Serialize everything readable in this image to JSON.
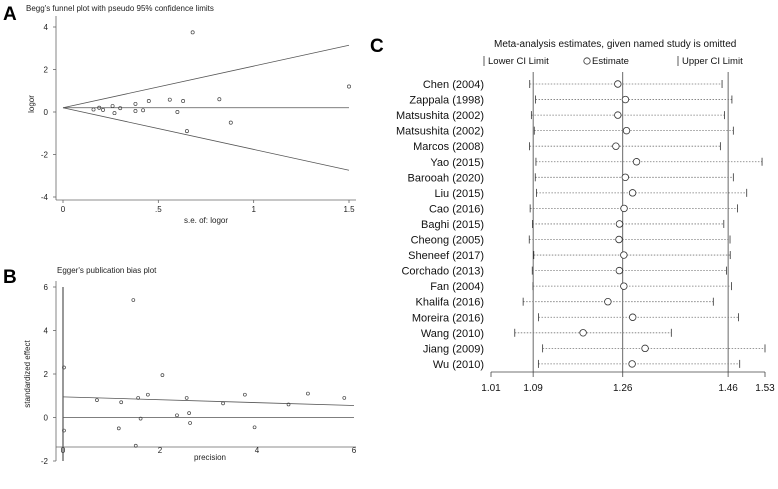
{
  "panels": {
    "a": {
      "label": "A",
      "chart_data": {
        "type": "scatter",
        "title": "Begg's funnel plot with pseudo 95% confidence limits",
        "xlabel": "s.e. of: logor",
        "ylabel": "logor",
        "xlim": [
          0,
          1.5
        ],
        "ylim": [
          -4,
          4
        ],
        "xticks": [
          "0",
          ".5",
          "1",
          "1.5"
        ],
        "xtick_values": [
          0,
          0.5,
          1,
          1.5
        ],
        "yticks": [
          "4",
          "2",
          "0",
          "-2",
          "-4"
        ],
        "ytick_values": [
          4,
          2,
          0,
          -2,
          -4
        ],
        "pooled_estimate": 0.2,
        "funnel_slope": 1.96,
        "points": [
          [
            0.16,
            0.12
          ],
          [
            0.19,
            0.2
          ],
          [
            0.21,
            0.1
          ],
          [
            0.26,
            0.28
          ],
          [
            0.27,
            -0.05
          ],
          [
            0.3,
            0.18
          ],
          [
            0.38,
            0.05
          ],
          [
            0.38,
            0.38
          ],
          [
            0.42,
            0.08
          ],
          [
            0.45,
            0.52
          ],
          [
            0.56,
            0.58
          ],
          [
            0.6,
            0.0
          ],
          [
            0.63,
            0.52
          ],
          [
            0.65,
            -0.9
          ],
          [
            0.68,
            3.75
          ],
          [
            0.82,
            0.6
          ],
          [
            0.88,
            -0.5
          ],
          [
            1.5,
            1.2
          ]
        ]
      }
    },
    "b": {
      "label": "B",
      "chart_data": {
        "type": "scatter",
        "title": "Egger's publication bias plot",
        "xlabel": "precision",
        "ylabel": "standardized effect",
        "xlim": [
          0,
          6
        ],
        "ylim": [
          -2,
          6
        ],
        "xticks": [
          "0",
          "2",
          "4",
          "6"
        ],
        "xtick_values": [
          0,
          2,
          4,
          6
        ],
        "yticks": [
          "6",
          "4",
          "2",
          "0",
          "-2"
        ],
        "ytick_values": [
          6,
          4,
          2,
          0,
          -2
        ],
        "regression_line": [
          [
            0,
            0.95
          ],
          [
            6,
            0.55
          ]
        ],
        "intercept_ci": [
          -2,
          6
        ],
        "points": [
          [
            0.02,
            2.3
          ],
          [
            0.02,
            -0.6
          ],
          [
            0.7,
            0.8
          ],
          [
            1.15,
            -0.5
          ],
          [
            1.2,
            0.7
          ],
          [
            1.45,
            5.4
          ],
          [
            1.5,
            -1.3
          ],
          [
            1.55,
            0.9
          ],
          [
            1.6,
            -0.05
          ],
          [
            1.75,
            1.05
          ],
          [
            2.05,
            1.95
          ],
          [
            2.35,
            0.1
          ],
          [
            2.55,
            0.9
          ],
          [
            2.6,
            0.2
          ],
          [
            2.62,
            -0.25
          ],
          [
            3.3,
            0.65
          ],
          [
            3.75,
            1.05
          ],
          [
            3.95,
            -0.45
          ],
          [
            4.65,
            0.6
          ],
          [
            5.05,
            1.1
          ],
          [
            5.8,
            0.9
          ]
        ]
      }
    },
    "c": {
      "label": "C",
      "chart_data": {
        "type": "forest",
        "title": "Meta-analysis estimates, given named study is omitted",
        "legend": [
          "Lower CI Limit",
          "Estimate",
          "Upper CI Limit"
        ],
        "xlim": [
          1.01,
          1.53
        ],
        "xticks": [
          "1.01",
          "1.09",
          "1.26",
          "1.46",
          "1.53"
        ],
        "xtick_values": [
          1.01,
          1.09,
          1.26,
          1.46,
          1.53
        ],
        "reference_lines": [
          1.09,
          1.26,
          1.46
        ],
        "studies": [
          {
            "name": "Chen (2004)",
            "lower": 1.0835,
            "estimate": 1.2507,
            "upper": 1.4485
          },
          {
            "name": "Zappala (1998)",
            "lower": 1.0945,
            "estimate": 1.2651,
            "upper": 1.4672
          },
          {
            "name": "Matsushita (2002)",
            "lower": 1.0866,
            "estimate": 1.2507,
            "upper": 1.4531
          },
          {
            "name": "Matsushita (2002)",
            "lower": 1.0921,
            "estimate": 1.2672,
            "upper": 1.4699
          },
          {
            "name": "Marcos (2008)",
            "lower": 1.0832,
            "estimate": 1.247,
            "upper": 1.4453
          },
          {
            "name": "Yao (2015)",
            "lower": 1.0953,
            "estimate": 1.2862,
            "upper": 1.5244
          },
          {
            "name": "Barooah (2020)",
            "lower": 1.094,
            "estimate": 1.2649,
            "upper": 1.4699
          },
          {
            "name": "Liu (2015)",
            "lower": 1.0962,
            "estimate": 1.2787,
            "upper": 1.4953
          },
          {
            "name": "Cao (2016)",
            "lower": 1.0843,
            "estimate": 1.2625,
            "upper": 1.478
          },
          {
            "name": "Baghi (2015)",
            "lower": 1.0887,
            "estimate": 1.2538,
            "upper": 1.4518
          },
          {
            "name": "Cheong (2005)",
            "lower": 1.0826,
            "estimate": 1.2529,
            "upper": 1.4636
          },
          {
            "name": "Sheneef (2017)",
            "lower": 1.0912,
            "estimate": 1.2621,
            "upper": 1.464
          },
          {
            "name": "Corchado (2013)",
            "lower": 1.0883,
            "estimate": 1.2535,
            "upper": 1.4569
          },
          {
            "name": "Fan (2004)",
            "lower": 1.0897,
            "estimate": 1.2621,
            "upper": 1.4663
          },
          {
            "name": "Khalifa (2016)",
            "lower": 1.071,
            "estimate": 1.2318,
            "upper": 1.4319
          },
          {
            "name": "Moreira (2016)",
            "lower": 1.1002,
            "estimate": 1.2789,
            "upper": 1.4797
          },
          {
            "name": "Wang (2010)",
            "lower": 1.0551,
            "estimate": 1.1848,
            "upper": 1.3522
          },
          {
            "name": "Jiang (2009)",
            "lower": 1.108,
            "estimate": 1.3024,
            "upper": 1.53
          },
          {
            "name": "Wu (2010)",
            "lower": 1.0999,
            "estimate": 1.2778,
            "upper": 1.482
          }
        ]
      }
    }
  }
}
